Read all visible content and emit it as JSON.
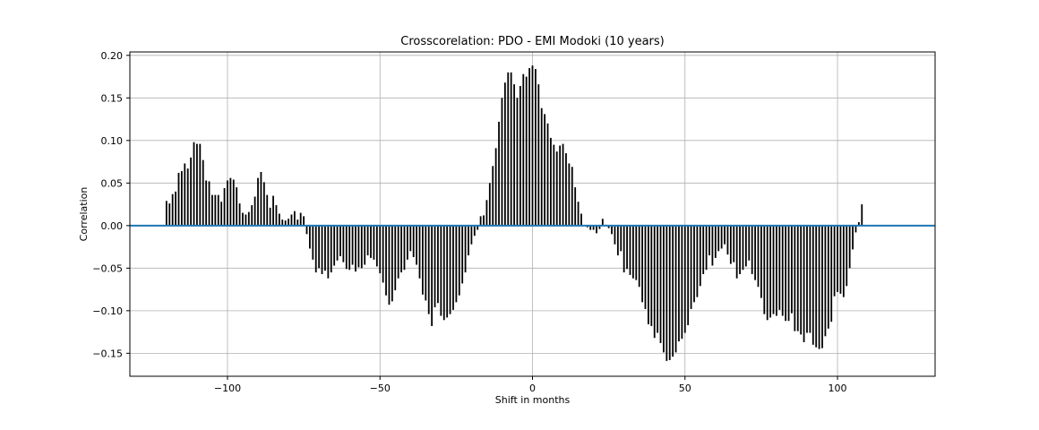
{
  "chart_data": {
    "type": "bar",
    "title": "Crosscorelation: PDO - EMI Modoki (10 years)",
    "xlabel": "Shift in months",
    "ylabel": "Correlation",
    "xlim": [
      -132,
      132
    ],
    "ylim": [
      -0.177,
      0.204
    ],
    "xticks": [
      -100,
      -50,
      0,
      50,
      100
    ],
    "yticks": [
      -0.15,
      -0.1,
      -0.05,
      0.0,
      0.05,
      0.1,
      0.15,
      0.2
    ],
    "xtick_labels": [
      "−100",
      "−50",
      "0",
      "50",
      "100"
    ],
    "ytick_labels": [
      "−0.15",
      "−0.10",
      "−0.05",
      "0.00",
      "0.05",
      "0.10",
      "0.15",
      "0.20"
    ],
    "grid": true,
    "colors": {
      "bars": "#000000",
      "zero_line": "#1f77b4",
      "grid": "#b0b0b0"
    },
    "x_start": -120,
    "x_step": 1,
    "values": [
      0.029,
      0.026,
      0.037,
      0.04,
      0.062,
      0.064,
      0.073,
      0.067,
      0.08,
      0.098,
      0.096,
      0.096,
      0.077,
      0.053,
      0.052,
      0.036,
      0.036,
      0.036,
      0.028,
      0.044,
      0.053,
      0.056,
      0.054,
      0.045,
      0.026,
      0.015,
      0.013,
      0.016,
      0.024,
      0.034,
      0.056,
      0.063,
      0.051,
      0.036,
      0.021,
      0.035,
      0.024,
      0.014,
      0.007,
      0.006,
      0.008,
      0.013,
      0.017,
      0.007,
      0.015,
      0.011,
      -0.01,
      -0.027,
      -0.04,
      -0.055,
      -0.05,
      -0.057,
      -0.053,
      -0.062,
      -0.055,
      -0.047,
      -0.041,
      -0.036,
      -0.043,
      -0.051,
      -0.052,
      -0.046,
      -0.054,
      -0.049,
      -0.05,
      -0.046,
      -0.035,
      -0.038,
      -0.04,
      -0.048,
      -0.056,
      -0.067,
      -0.082,
      -0.093,
      -0.089,
      -0.076,
      -0.062,
      -0.055,
      -0.052,
      -0.04,
      -0.03,
      -0.037,
      -0.046,
      -0.062,
      -0.081,
      -0.088,
      -0.104,
      -0.118,
      -0.096,
      -0.091,
      -0.106,
      -0.111,
      -0.108,
      -0.104,
      -0.099,
      -0.09,
      -0.082,
      -0.068,
      -0.055,
      -0.035,
      -0.022,
      -0.012,
      -0.005,
      0.011,
      0.012,
      0.03,
      0.05,
      0.07,
      0.091,
      0.122,
      0.15,
      0.168,
      0.18,
      0.18,
      0.166,
      0.15,
      0.164,
      0.178,
      0.175,
      0.185,
      0.188,
      0.184,
      0.166,
      0.138,
      0.131,
      0.12,
      0.103,
      0.095,
      0.087,
      0.094,
      0.096,
      0.085,
      0.073,
      0.069,
      0.045,
      0.028,
      0.014,
      0.0,
      -0.002,
      -0.005,
      -0.005,
      -0.009,
      -0.004,
      0.008,
      0.001,
      -0.003,
      -0.01,
      -0.022,
      -0.035,
      -0.03,
      -0.055,
      -0.051,
      -0.058,
      -0.062,
      -0.064,
      -0.072,
      -0.09,
      -0.098,
      -0.116,
      -0.118,
      -0.132,
      -0.126,
      -0.138,
      -0.149,
      -0.159,
      -0.158,
      -0.154,
      -0.149,
      -0.136,
      -0.133,
      -0.126,
      -0.117,
      -0.098,
      -0.09,
      -0.084,
      -0.071,
      -0.057,
      -0.052,
      -0.035,
      -0.047,
      -0.038,
      -0.03,
      -0.027,
      -0.022,
      -0.034,
      -0.045,
      -0.043,
      -0.062,
      -0.057,
      -0.052,
      -0.048,
      -0.041,
      -0.057,
      -0.064,
      -0.072,
      -0.085,
      -0.104,
      -0.111,
      -0.108,
      -0.104,
      -0.106,
      -0.099,
      -0.106,
      -0.112,
      -0.112,
      -0.103,
      -0.124,
      -0.124,
      -0.128,
      -0.137,
      -0.126,
      -0.126,
      -0.14,
      -0.143,
      -0.145,
      -0.144,
      -0.13,
      -0.121,
      -0.113,
      -0.083,
      -0.078,
      -0.08,
      -0.084,
      -0.071,
      -0.05,
      -0.028,
      -0.008,
      0.004,
      0.025
    ]
  }
}
